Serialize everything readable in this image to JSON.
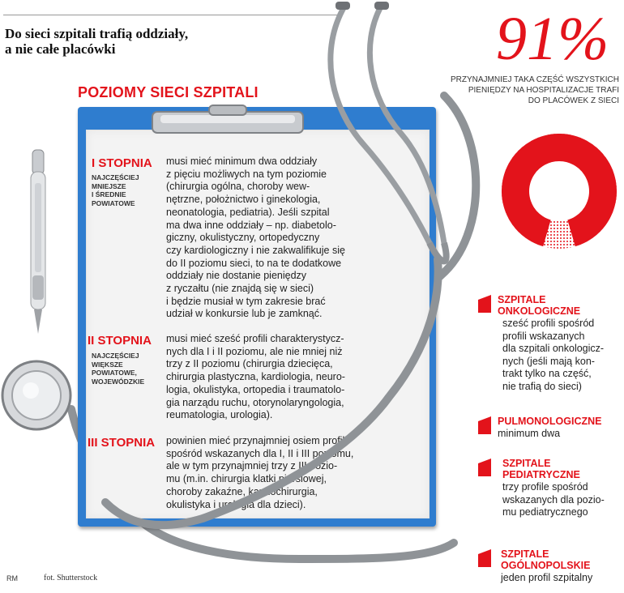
{
  "header": {
    "headline_line1": "Do sieci szpitali trafią oddziały,",
    "headline_line2": "a nie całe placówki"
  },
  "section_title": "POZIOMY SIECI SZPITALI",
  "levels": [
    {
      "title": "I STOPNIA",
      "subtitle": "NAJCZĘŚCIEJ\nMNIEJSZE\nI ŚREDNIE\nPOWIATOWE",
      "text": "musi mieć minimum dwa oddziały\nz pięciu możliwych na tym poziomie\n(chirurgia ogólna, choroby wew-\nnętrzne, położnictwo i ginekologia,\nneonatologia, pediatria). Jeśli szpital\nma dwa inne oddziały – np. diabetolo-\ngiczny, okulistyczny, ortopedyczny\nczy kardiologiczny i nie zakwalifikuje się\ndo II poziomu sieci, to na te dodatkowe\noddziały nie dostanie pieniędzy\nz ryczałtu (nie znajdą się w sieci)\ni będzie musiał w tym zakresie brać\nudział w konkursie lub je zamknąć."
    },
    {
      "title": "II STOPNIA",
      "subtitle": "NAJCZĘŚCIEJ\nWIĘKSZE\nPOWIATOWE,\nWOJEWÓDZKIE",
      "text": "musi mieć sześć profili charakterystycz-\nnych dla I i II poziomu, ale nie mniej niż\ntrzy z II poziomu (chirurgia dziecięca,\nchirurgia plastyczna, kardiologia, neuro-\nlogia, okulistyka, ortopedia i traumatolo-\ngia narządu ruchu, otorynolaryngologia,\nreumatologia, urologia)."
    },
    {
      "title": "III STOPNIA",
      "subtitle": "",
      "text": "powinien mieć przynajmniej osiem profili\nspośród wskazanych dla I, II i III poziomu,\nale w tym przynajmniej trzy z III pozio-\nmu (m.in. chirurgia klatki piersiowej,\nchoroby zakaźne, kardiochirurgia,\nokulistyka i urologia dla dzieci)."
    }
  ],
  "stat": {
    "percent_label": "91%",
    "percent_value": 91,
    "caption": "PRZYNAJMNIEJ TAKA CZĘŚĆ WSZYSTKICH\nPIENIĘDZY NA HOSPITALIZACJE TRAFI\nDO PLACÓWEK Z SIECI"
  },
  "facts": [
    {
      "title": "SZPITALE\nONKOLOGICZNE",
      "text": "sześć profili spośród\nprofili wskazanych\ndla szpitali onkologicz-\nnych (jeśli mają kon-\ntrakt tylko na część,\nnie trafią do sieci)"
    },
    {
      "title": "PULMONOLOGICZNE",
      "text": "minimum dwa"
    },
    {
      "title": "SZPITALE\nPEDIATRYCZNE",
      "text": "trzy profile spośród\nwskazanych dla pozio-\nmu pediatrycznego"
    },
    {
      "title": "SZPITALE\nOGÓLNOPOLSKIE",
      "text": "jeden profil szpitalny"
    }
  ],
  "credits": {
    "author": "RM",
    "photo": "fot. Shutterstock"
  },
  "colors": {
    "accent": "#e3131b",
    "board": "#2f7dcf"
  }
}
